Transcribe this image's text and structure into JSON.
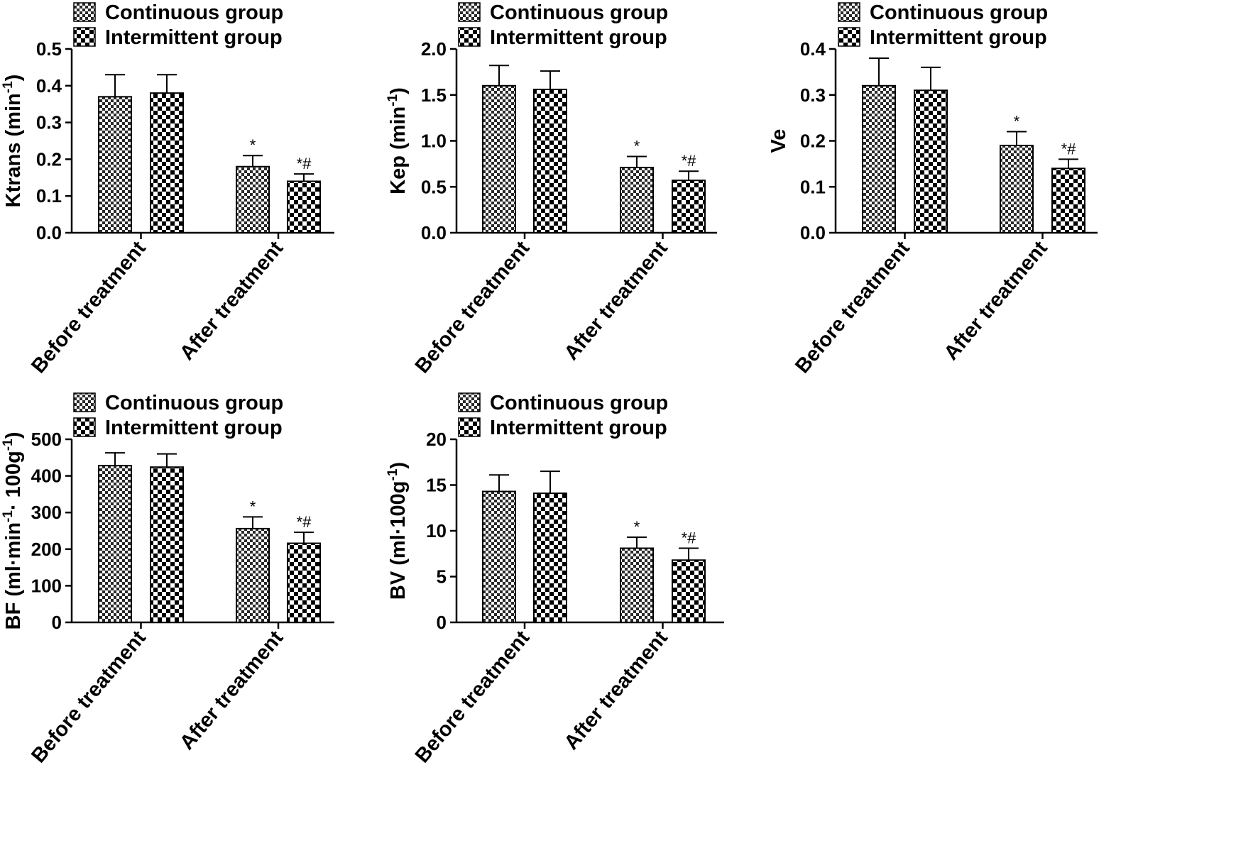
{
  "legend": {
    "continuous": "Continuous group",
    "intermittent": "Intermittent group"
  },
  "colors": {
    "stroke": "#000000",
    "background": "#ffffff",
    "pattern_dark": "#000000",
    "pattern_light": "#ffffff"
  },
  "chart_data": [
    {
      "type": "bar",
      "ylabel": "Ktrans (min",
      "ylabel_sup": "-1",
      "ylabel_tail": ")",
      "categories": [
        "Before treatment",
        "After treatment"
      ],
      "ylim": [
        0,
        0.5
      ],
      "yticks": [
        "0.0",
        "0.1",
        "0.2",
        "0.3",
        "0.4",
        "0.5"
      ],
      "series": [
        {
          "name": "Continuous group",
          "values": [
            0.37,
            0.18
          ],
          "errors": [
            0.06,
            0.03
          ],
          "annotations": [
            "",
            "*"
          ]
        },
        {
          "name": "Intermittent group",
          "values": [
            0.38,
            0.14
          ],
          "errors": [
            0.05,
            0.02
          ],
          "annotations": [
            "",
            "*#"
          ]
        }
      ]
    },
    {
      "type": "bar",
      "ylabel": "Kep (min",
      "ylabel_sup": "-1",
      "ylabel_tail": ")",
      "categories": [
        "Before treatment",
        "After treatment"
      ],
      "ylim": [
        0,
        2.0
      ],
      "yticks": [
        "0.0",
        "0.5",
        "1.0",
        "1.5",
        "2.0"
      ],
      "series": [
        {
          "name": "Continuous group",
          "values": [
            1.6,
            0.71
          ],
          "errors": [
            0.22,
            0.12
          ],
          "annotations": [
            "",
            "*"
          ]
        },
        {
          "name": "Intermittent group",
          "values": [
            1.56,
            0.57
          ],
          "errors": [
            0.2,
            0.1
          ],
          "annotations": [
            "",
            "*#"
          ]
        }
      ]
    },
    {
      "type": "bar",
      "ylabel": "Ve",
      "ylabel_sup": "",
      "ylabel_tail": "",
      "categories": [
        "Before treatment",
        "After treatment"
      ],
      "ylim": [
        0,
        0.4
      ],
      "yticks": [
        "0.0",
        "0.1",
        "0.2",
        "0.3",
        "0.4"
      ],
      "series": [
        {
          "name": "Continuous group",
          "values": [
            0.32,
            0.19
          ],
          "errors": [
            0.06,
            0.03
          ],
          "annotations": [
            "",
            "*"
          ]
        },
        {
          "name": "Intermittent group",
          "values": [
            0.31,
            0.14
          ],
          "errors": [
            0.05,
            0.02
          ],
          "annotations": [
            "",
            "*#"
          ]
        }
      ]
    },
    {
      "type": "bar",
      "ylabel": "BF (ml·min",
      "ylabel_sup": "-1",
      "ylabel_tail": "· 100g",
      "ylabel_sup2": "-1",
      "ylabel_end": ")",
      "categories": [
        "Before treatment",
        "After treatment"
      ],
      "ylim": [
        0,
        500
      ],
      "yticks": [
        "0",
        "100",
        "200",
        "300",
        "400",
        "500"
      ],
      "series": [
        {
          "name": "Continuous group",
          "values": [
            428,
            256
          ],
          "errors": [
            35,
            32
          ],
          "annotations": [
            "",
            "*"
          ]
        },
        {
          "name": "Intermittent group",
          "values": [
            424,
            216
          ],
          "errors": [
            36,
            30
          ],
          "annotations": [
            "",
            "*#"
          ]
        }
      ]
    },
    {
      "type": "bar",
      "ylabel": "BV (ml·100g",
      "ylabel_sup": "-1",
      "ylabel_tail": ")",
      "categories": [
        "Before treatment",
        "After treatment"
      ],
      "ylim": [
        0,
        20
      ],
      "yticks": [
        "0",
        "5",
        "10",
        "15",
        "20"
      ],
      "series": [
        {
          "name": "Continuous group",
          "values": [
            14.3,
            8.1
          ],
          "errors": [
            1.8,
            1.2
          ],
          "annotations": [
            "",
            "*"
          ]
        },
        {
          "name": "Intermittent group",
          "values": [
            14.1,
            6.8
          ],
          "errors": [
            2.4,
            1.3
          ],
          "annotations": [
            "",
            "*#"
          ]
        }
      ]
    }
  ]
}
